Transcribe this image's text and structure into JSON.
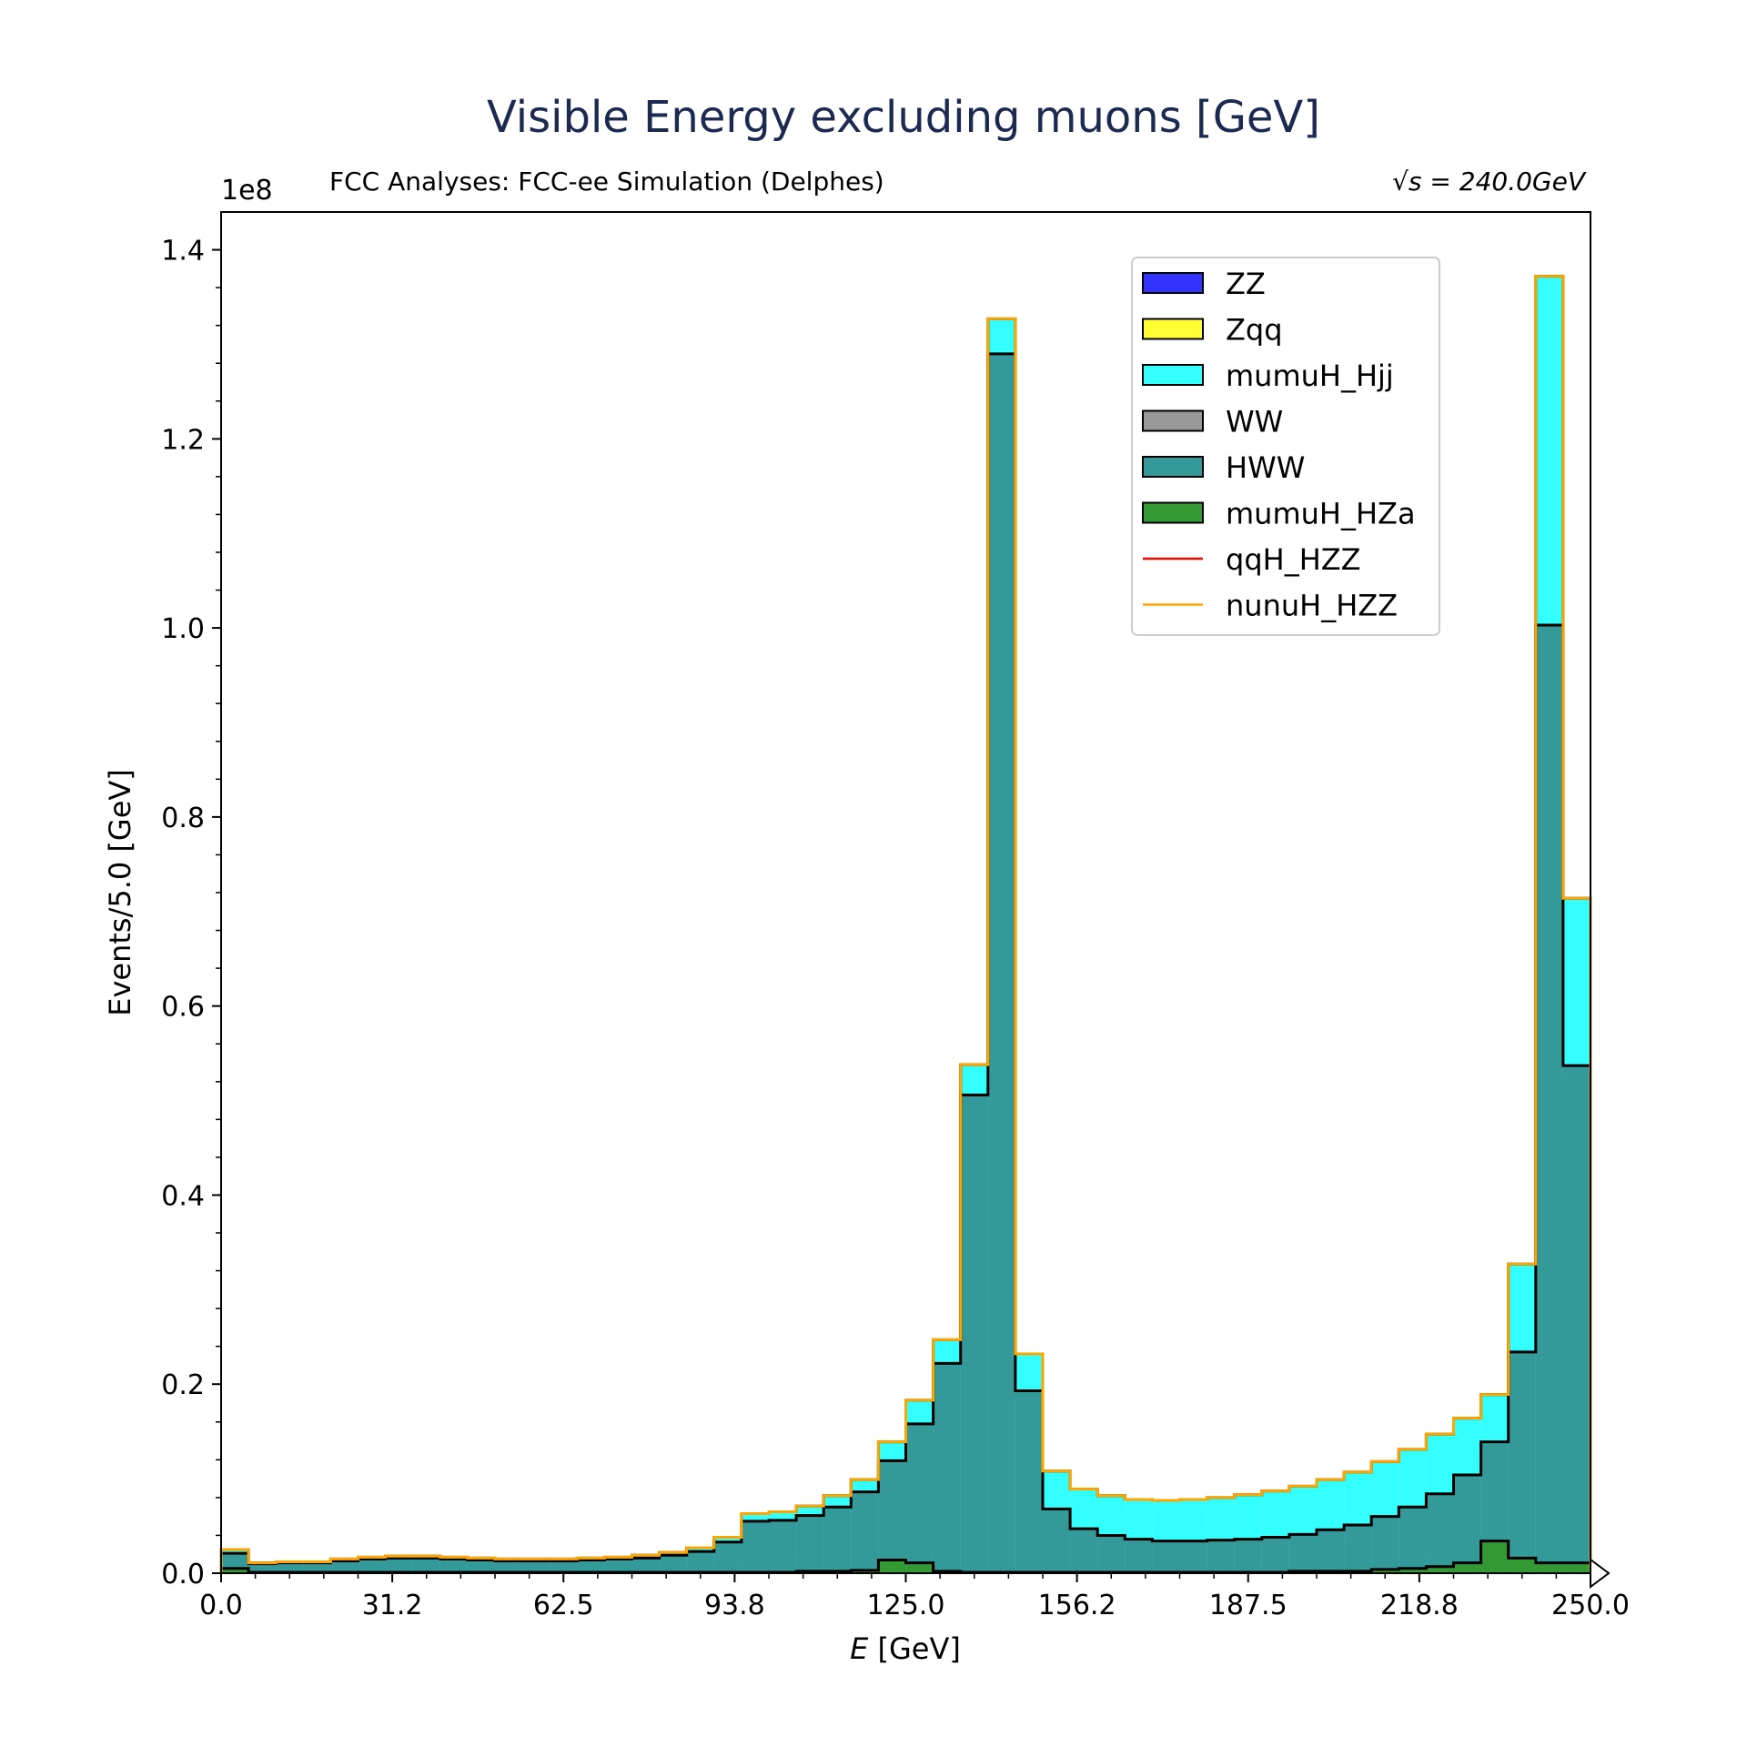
{
  "chart_data": {
    "type": "bar",
    "title": "Visible Energy excluding muons [GeV]",
    "subtitle_left": "FCC Analyses: FCC-ee Simulation (Delphes)",
    "subtitle_right": "√s = 240.0GeV",
    "xlabel": "E [GeV]",
    "xlabel_var": "E",
    "xlabel_unit": " [GeV]",
    "ylabel": "Events/5.0 [GeV]",
    "y_offset_label": "1e8",
    "xlim": [
      0,
      250
    ],
    "ylim": [
      0,
      1.44
    ],
    "y_scale_factor": 100000000,
    "bin_width": 5,
    "x_ticks": [
      "0.0",
      "31.2",
      "62.5",
      "93.8",
      "125.0",
      "156.2",
      "187.5",
      "218.8",
      "250.0"
    ],
    "x_tick_values": [
      0,
      31.25,
      62.5,
      93.75,
      125,
      156.25,
      187.5,
      218.75,
      250
    ],
    "y_ticks": [
      "0.0",
      "0.2",
      "0.4",
      "0.6",
      "0.8",
      "1.0",
      "1.2",
      "1.4"
    ],
    "y_tick_values": [
      0,
      0.2,
      0.4,
      0.6,
      0.8,
      1.0,
      1.2,
      1.4
    ],
    "grid": false,
    "legend_position": "top-right",
    "legend": [
      {
        "name": "ZZ",
        "kind": "patch",
        "color": "#3333ff"
      },
      {
        "name": "Zqq",
        "kind": "patch",
        "color": "#ffff33"
      },
      {
        "name": "mumuH_Hjj",
        "kind": "patch",
        "color": "#33ffff"
      },
      {
        "name": "WW",
        "kind": "patch",
        "color": "#999999"
      },
      {
        "name": "HWW",
        "kind": "patch",
        "color": "#339999"
      },
      {
        "name": "mumuH_HZa",
        "kind": "patch",
        "color": "#339933"
      },
      {
        "name": "qqH_HZZ",
        "kind": "line",
        "color": "#ff0000"
      },
      {
        "name": "nunuH_HZZ",
        "kind": "line",
        "color": "#ffa500"
      }
    ],
    "bin_edges_start": 0,
    "series_cumulative": [
      {
        "name": "mumuH_HZa",
        "color": "#339933",
        "values": [
          0.005,
          0.001,
          0.001,
          0.001,
          0.001,
          0.001,
          0.001,
          0.001,
          0.001,
          0.001,
          0.001,
          0.001,
          0.001,
          0.001,
          0.001,
          0.001,
          0.001,
          0.001,
          0.001,
          0.001,
          0.001,
          0.002,
          0.002,
          0.003,
          0.014,
          0.011,
          0.002,
          0.001,
          0.001,
          0.001,
          0.001,
          0.001,
          0.001,
          0.001,
          0.001,
          0.001,
          0.001,
          0.001,
          0.001,
          0.002,
          0.002,
          0.002,
          0.004,
          0.005,
          0.007,
          0.011,
          0.034,
          0.016,
          0.011,
          0.011
        ]
      },
      {
        "name": "HWW",
        "color": "#339999",
        "values": [
          0.021,
          0.01,
          0.011,
          0.011,
          0.013,
          0.015,
          0.016,
          0.016,
          0.015,
          0.014,
          0.013,
          0.013,
          0.013,
          0.014,
          0.015,
          0.016,
          0.019,
          0.023,
          0.033,
          0.055,
          0.056,
          0.061,
          0.07,
          0.086,
          0.119,
          0.158,
          0.222,
          0.506,
          1.29,
          0.193,
          0.068,
          0.047,
          0.04,
          0.036,
          0.034,
          0.034,
          0.035,
          0.036,
          0.038,
          0.041,
          0.046,
          0.051,
          0.06,
          0.07,
          0.084,
          0.104,
          0.139,
          0.234,
          1.003,
          0.537
        ]
      },
      {
        "name": "mumuH_Hjj",
        "color": "#33ffff",
        "values": [
          0.025,
          0.011,
          0.012,
          0.012,
          0.015,
          0.017,
          0.018,
          0.018,
          0.017,
          0.016,
          0.015,
          0.015,
          0.015,
          0.016,
          0.017,
          0.019,
          0.022,
          0.027,
          0.038,
          0.063,
          0.065,
          0.071,
          0.082,
          0.099,
          0.139,
          0.183,
          0.247,
          0.538,
          1.327,
          0.232,
          0.108,
          0.089,
          0.082,
          0.078,
          0.077,
          0.078,
          0.08,
          0.083,
          0.087,
          0.092,
          0.099,
          0.107,
          0.118,
          0.131,
          0.147,
          0.164,
          0.189,
          0.327,
          1.372,
          0.714
        ]
      },
      {
        "name": "nunuH_HZZ",
        "color": "#ffa500",
        "values": [
          0.025,
          0.011,
          0.012,
          0.012,
          0.015,
          0.017,
          0.018,
          0.018,
          0.017,
          0.016,
          0.015,
          0.015,
          0.015,
          0.016,
          0.017,
          0.019,
          0.022,
          0.027,
          0.038,
          0.063,
          0.065,
          0.071,
          0.082,
          0.099,
          0.139,
          0.183,
          0.247,
          0.538,
          1.327,
          0.232,
          0.108,
          0.089,
          0.082,
          0.078,
          0.077,
          0.078,
          0.08,
          0.083,
          0.087,
          0.092,
          0.099,
          0.107,
          0.118,
          0.131,
          0.147,
          0.164,
          0.189,
          0.327,
          1.372,
          0.714
        ]
      }
    ],
    "overflow_bin_value": 0.015
  }
}
